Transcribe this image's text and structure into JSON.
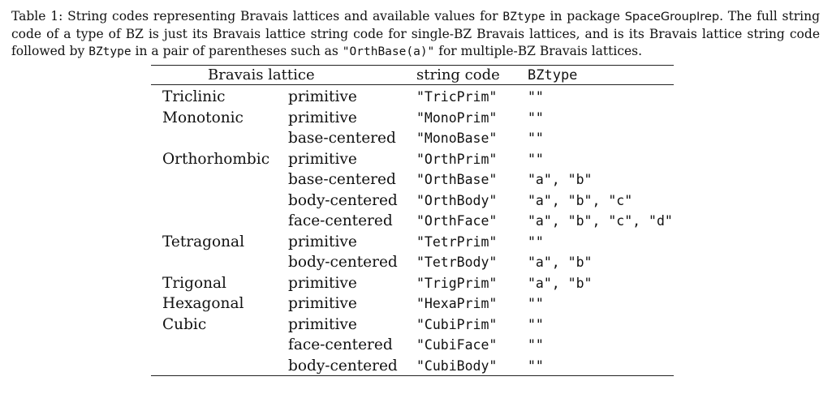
{
  "caption": {
    "p1": "Table 1: String codes representing Bravais lattices and available values for ",
    "code1": "BZtype",
    "p2": " in package ",
    "pkg": "SpaceGroupIrep",
    "p3": ". The full string code of a type of BZ is just its Bravais lattice string code for single-BZ Bravais lattices, and is its Bravais lattice string code followed by ",
    "code2": "BZtype",
    "p4": " in a pair of parentheses such as ",
    "code3": "\"OrthBase(a)\"",
    "p5": " for multiple-BZ Bravais lattices."
  },
  "table": {
    "headers": {
      "lattice": "Bravais lattice",
      "code": "string code",
      "bztype": "BZtype"
    },
    "rows": [
      {
        "system": "Triclinic",
        "centering": "primitive",
        "code": "\"TricPrim\"",
        "bztype": "\"\""
      },
      {
        "system": "Monotonic",
        "centering": "primitive",
        "code": "\"MonoPrim\"",
        "bztype": "\"\""
      },
      {
        "system": "",
        "centering": "base-centered",
        "code": "\"MonoBase\"",
        "bztype": "\"\""
      },
      {
        "system": "Orthorhombic",
        "centering": "primitive",
        "code": "\"OrthPrim\"",
        "bztype": "\"\""
      },
      {
        "system": "",
        "centering": "base-centered",
        "code": "\"OrthBase\"",
        "bztype": "\"a\", \"b\""
      },
      {
        "system": "",
        "centering": "body-centered",
        "code": "\"OrthBody\"",
        "bztype": "\"a\", \"b\", \"c\""
      },
      {
        "system": "",
        "centering": "face-centered",
        "code": "\"OrthFace\"",
        "bztype": "\"a\", \"b\", \"c\", \"d\""
      },
      {
        "system": "Tetragonal",
        "centering": "primitive",
        "code": "\"TetrPrim\"",
        "bztype": "\"\""
      },
      {
        "system": "",
        "centering": "body-centered",
        "code": "\"TetrBody\"",
        "bztype": "\"a\", \"b\""
      },
      {
        "system": "Trigonal",
        "centering": "primitive",
        "code": "\"TrigPrim\"",
        "bztype": "\"a\", \"b\""
      },
      {
        "system": "Hexagonal",
        "centering": "primitive",
        "code": "\"HexaPrim\"",
        "bztype": "\"\""
      },
      {
        "system": "Cubic",
        "centering": "primitive",
        "code": "\"CubiPrim\"",
        "bztype": "\"\""
      },
      {
        "system": "",
        "centering": "face-centered",
        "code": "\"CubiFace\"",
        "bztype": "\"\""
      },
      {
        "system": "",
        "centering": "body-centered",
        "code": "\"CubiBody\"",
        "bztype": "\"\""
      }
    ]
  }
}
